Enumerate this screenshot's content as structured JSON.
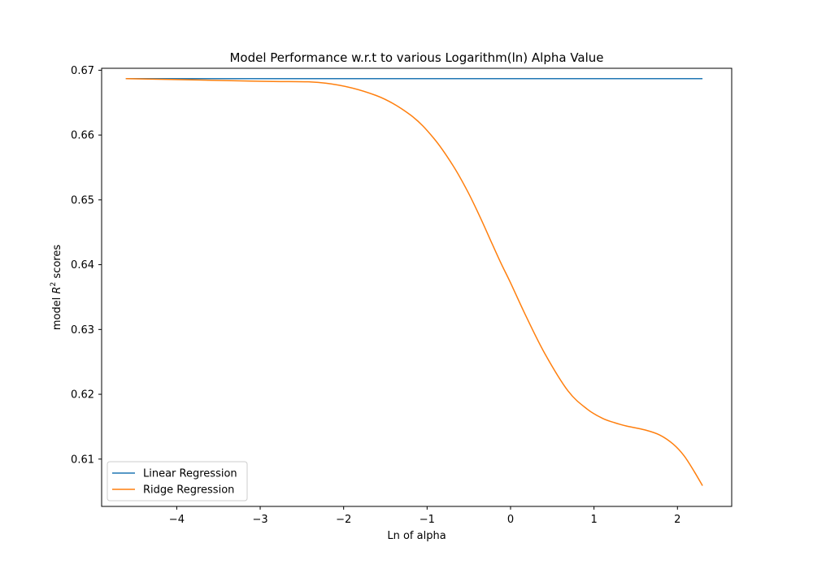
{
  "chart_data": {
    "type": "line",
    "title": "Model Performance w.r.t to various Logarithm(ln) Alpha Value",
    "xlabel": "Ln of alpha",
    "ylabel_prefix": "model ",
    "ylabel_var": "R",
    "ylabel_sup": "2",
    "ylabel_suffix": " scores",
    "xlim": [
      -4.9,
      2.65
    ],
    "ylim": [
      0.6027,
      0.6703
    ],
    "xticks": [
      -4,
      -3,
      -2,
      -1,
      0,
      1,
      2
    ],
    "xtick_labels": [
      "−4",
      "−3",
      "−2",
      "−1",
      "0",
      "1",
      "2"
    ],
    "yticks": [
      0.61,
      0.62,
      0.63,
      0.64,
      0.65,
      0.66,
      0.67
    ],
    "ytick_labels": [
      "0.61",
      "0.62",
      "0.63",
      "0.64",
      "0.65",
      "0.66",
      "0.67"
    ],
    "grid": false,
    "legend_position": "lower-left",
    "series": [
      {
        "name": "Linear Regression",
        "color": "#1f77b4",
        "x": [
          -4.61,
          2.3
        ],
        "y": [
          0.6687,
          0.6687
        ]
      },
      {
        "name": "Ridge Regression",
        "color": "#ff7f0e",
        "x": [
          -4.61,
          -3.0,
          -2.21,
          -1.61,
          -1.2,
          -0.92,
          -0.69,
          -0.51,
          -0.36,
          -0.22,
          -0.11,
          0.0,
          0.18,
          0.41,
          0.69,
          0.92,
          1.1,
          1.25,
          1.39,
          1.61,
          1.79,
          1.95,
          2.08,
          2.2,
          2.3
        ],
        "y": [
          0.6687,
          0.6683,
          0.668,
          0.6661,
          0.6631,
          0.6595,
          0.6553,
          0.6512,
          0.6472,
          0.6432,
          0.6401,
          0.6372,
          0.6322,
          0.6263,
          0.6205,
          0.6177,
          0.6163,
          0.6156,
          0.6151,
          0.6145,
          0.6137,
          0.6123,
          0.6105,
          0.6081,
          0.6059
        ]
      }
    ]
  }
}
